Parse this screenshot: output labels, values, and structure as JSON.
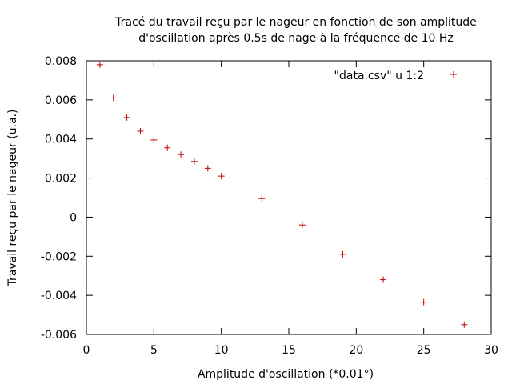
{
  "chart_data": {
    "type": "scatter",
    "title_lines": [
      "Tracé du travail reçu par le nageur en fonction de son amplitude",
      "d'oscillation après 0.5s de nage à la fréquence de 10 Hz"
    ],
    "xlabel": "Amplitude d'oscillation (*0.01°)",
    "ylabel": "Travail reçu par le nageur (u.a.)",
    "xlim": [
      0,
      30
    ],
    "ylim": [
      -0.006,
      0.008
    ],
    "x_ticks": [
      0,
      5,
      10,
      15,
      20,
      25,
      30
    ],
    "x_tick_labels": [
      "0",
      "5",
      "10",
      "15",
      "20",
      "25",
      "30"
    ],
    "y_ticks": [
      -0.006,
      -0.004,
      -0.002,
      0,
      0.002,
      0.004,
      0.006,
      0.008
    ],
    "y_tick_labels": [
      "-0.006",
      "-0.004",
      "-0.002",
      "0",
      "0.002",
      "0.004",
      "0.006",
      "0.008"
    ],
    "grid": false,
    "legend_position": "top-right",
    "series": [
      {
        "name": "\"data.csv\" u 1:2",
        "color": "#c00000",
        "marker": "plus",
        "x": [
          1,
          2,
          3,
          4,
          5,
          6,
          7,
          8,
          9,
          10,
          13,
          16,
          19,
          22,
          25,
          28
        ],
        "y": [
          0.0078,
          0.0061,
          0.0051,
          0.0044,
          0.00395,
          0.00355,
          0.0032,
          0.00285,
          0.0025,
          0.0021,
          0.00095,
          -0.0004,
          -0.0019,
          -0.0032,
          -0.00435,
          -0.0055
        ]
      }
    ]
  }
}
